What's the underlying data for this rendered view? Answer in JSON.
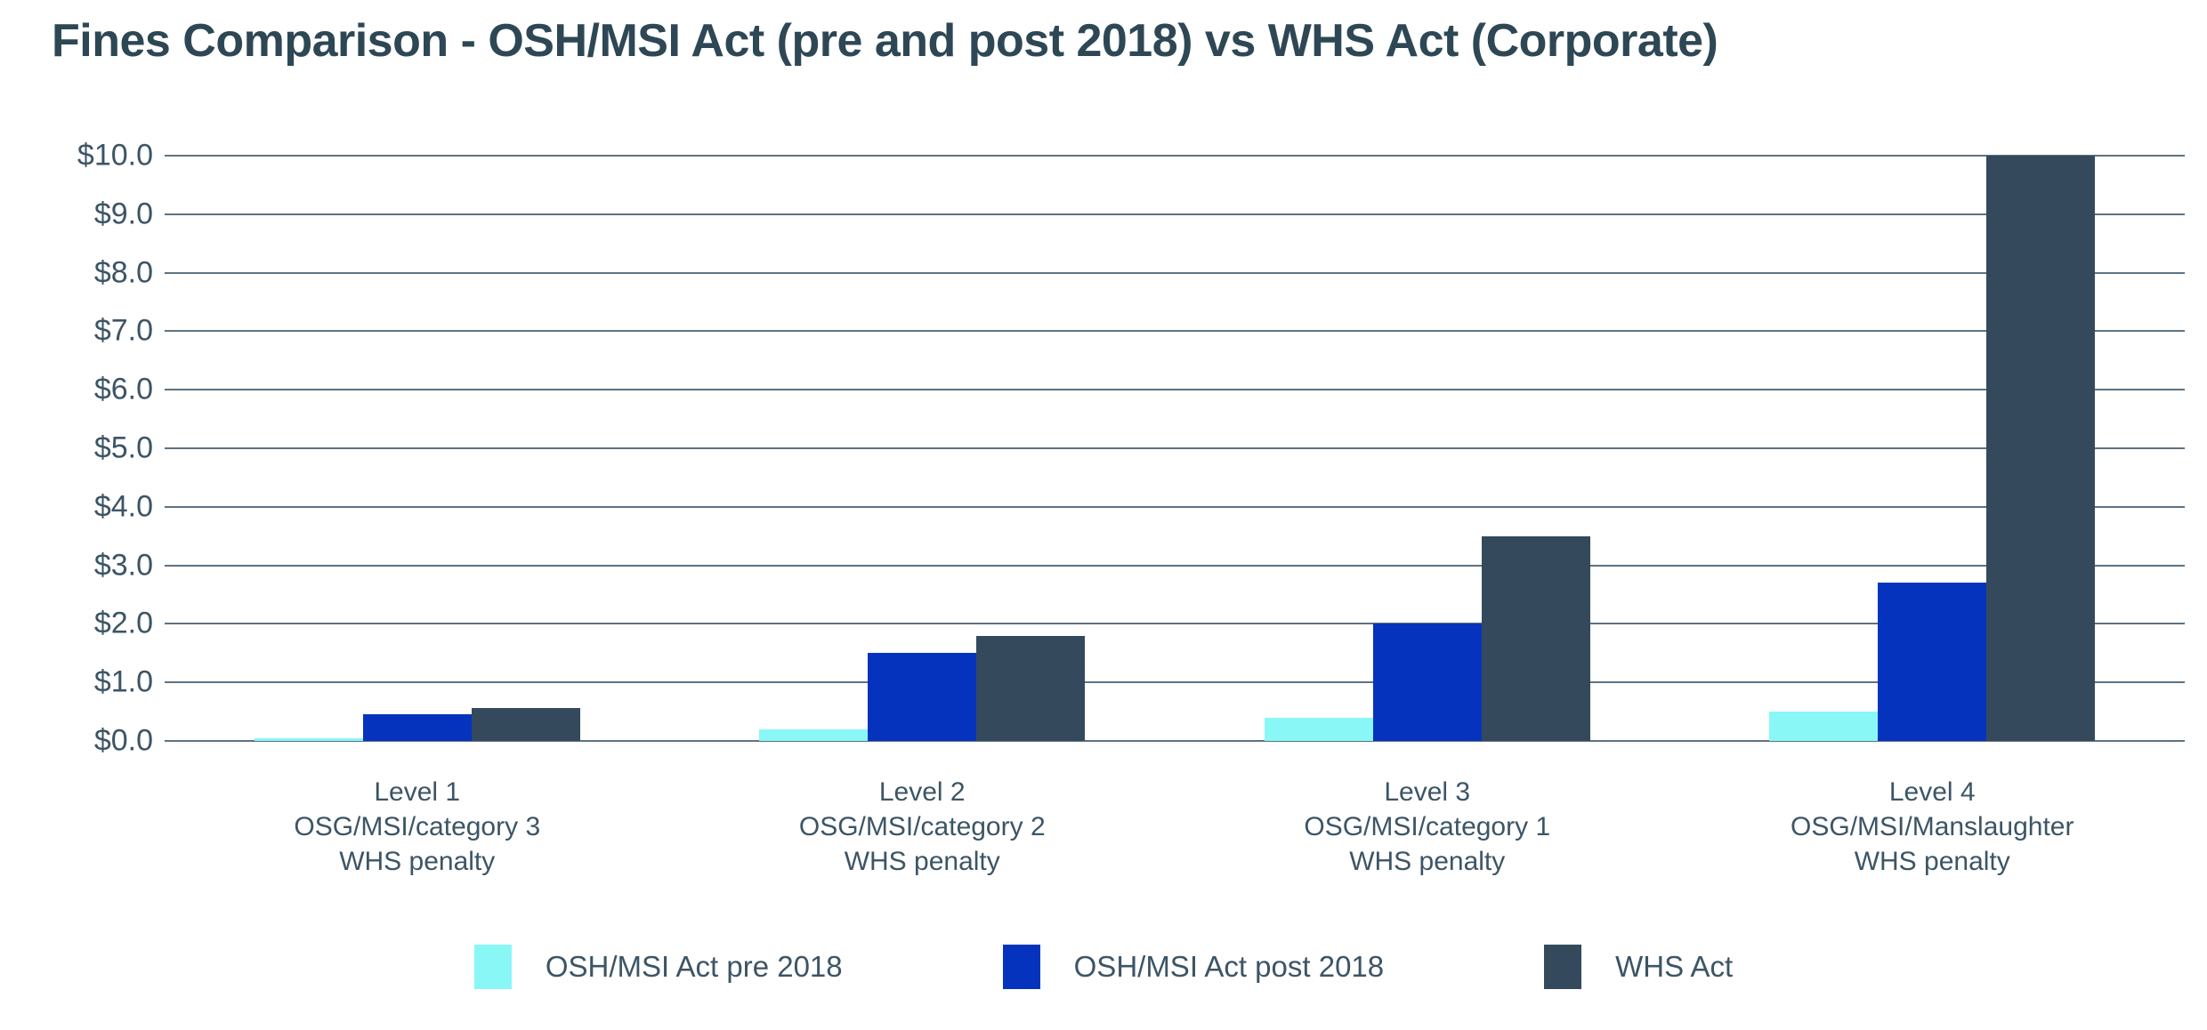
{
  "title": "Fines Comparison - OSH/MSI Act (pre and post 2018) vs WHS Act (Corporate)",
  "colors": {
    "title_text": "#2E4755",
    "axis_text": "#3C5565",
    "gridline": "#5E7282",
    "background": "#FFFFFF",
    "series_pre_2018": "#8AF7F7",
    "series_post_2018": "#0633BE",
    "series_whs": "#344A5C"
  },
  "chart_data": {
    "type": "bar",
    "title": "Fines Comparison - OSH/MSI Act (pre and post 2018) vs WHS Act (Corporate)",
    "xlabel": "",
    "ylabel": "",
    "ylim": [
      0,
      10
    ],
    "grid": true,
    "legend_position": "bottom",
    "value_unit": "$ millions",
    "categories": [
      [
        "Level 1",
        "OSG/MSI/category 3",
        "WHS penalty"
      ],
      [
        "Level 2",
        "OSG/MSI/category 2",
        "WHS penalty"
      ],
      [
        "Level 3",
        "OSG/MSI/category 1",
        "WHS penalty"
      ],
      [
        "Level 4",
        "OSG/MSI/Manslaughter",
        "WHS penalty"
      ]
    ],
    "series": [
      {
        "name": "OSH/MSI Act pre 2018",
        "color": "#8AF7F7",
        "values": [
          0.05,
          0.2,
          0.4,
          0.5
        ]
      },
      {
        "name": "OSH/MSI Act post 2018",
        "color": "#0633BE",
        "values": [
          0.45,
          1.5,
          2.0,
          2.7
        ]
      },
      {
        "name": "WHS Act",
        "color": "#344A5C",
        "values": [
          0.57,
          1.8,
          3.5,
          10.0
        ]
      }
    ],
    "y_ticks": [
      {
        "value": 10,
        "label": "$10.0"
      },
      {
        "value": 9,
        "label": "$9.0"
      },
      {
        "value": 8,
        "label": "$8.0"
      },
      {
        "value": 7,
        "label": "$7.0"
      },
      {
        "value": 6,
        "label": "$6.0"
      },
      {
        "value": 5,
        "label": "$5.0"
      },
      {
        "value": 4,
        "label": "$4.0"
      },
      {
        "value": 3,
        "label": "$3.0"
      },
      {
        "value": 2,
        "label": "$2.0"
      },
      {
        "value": 1,
        "label": "$1.0"
      },
      {
        "value": 0,
        "label": "$0.0"
      }
    ]
  }
}
